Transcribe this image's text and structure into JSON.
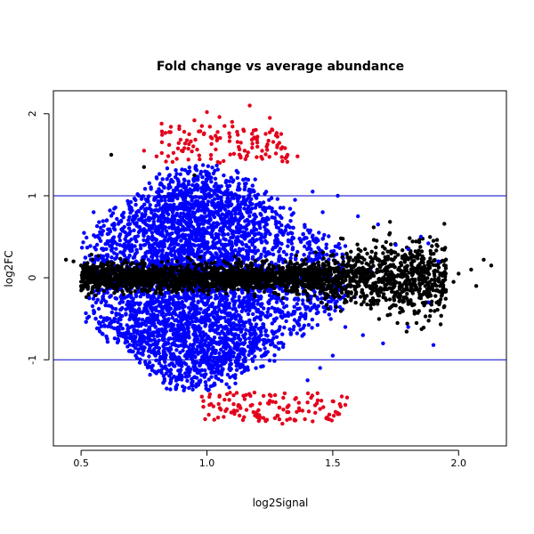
{
  "chart_data": {
    "type": "scatter",
    "title": "Fold change vs average abundance",
    "xlabel": "log2Signal",
    "ylabel": "log2FC",
    "xlim": [
      0.39,
      2.19
    ],
    "ylim": [
      -2.05,
      2.28
    ],
    "x_ticks": [
      0.5,
      1.0,
      1.5,
      2.0
    ],
    "x_tick_labels": [
      "0.5",
      "1.0",
      "1.5",
      "2.0"
    ],
    "y_ticks": [
      -1,
      0,
      1,
      2
    ],
    "y_tick_labels": [
      "-1",
      "0",
      "1",
      "2"
    ],
    "grid": false,
    "legend": "none",
    "reference_lines": [
      {
        "axis": "y",
        "value": 1,
        "color": "#0000CD"
      },
      {
        "axis": "y",
        "value": -1,
        "color": "#0000CD"
      }
    ],
    "series": [
      {
        "color": "#E3001B",
        "description_points": "abs(log2FC) > 1.4",
        "points": [
          [
            0.82,
            1.88
          ],
          [
            0.91,
            1.78
          ],
          [
            0.95,
            1.92
          ],
          [
            1.0,
            2.02
          ],
          [
            1.05,
            1.96
          ],
          [
            1.1,
            1.9
          ],
          [
            1.17,
            2.1
          ],
          [
            1.25,
            1.95
          ],
          [
            1.28,
            1.72
          ],
          [
            0.85,
            1.62
          ],
          [
            0.9,
            1.55
          ],
          [
            1.02,
            1.7
          ],
          [
            1.12,
            1.78
          ],
          [
            1.2,
            1.65
          ],
          [
            1.32,
            1.5
          ],
          [
            1.36,
            1.48
          ],
          [
            0.8,
            1.48
          ],
          [
            0.98,
            1.85
          ],
          [
            1.07,
            1.85
          ],
          [
            1.15,
            1.55
          ],
          [
            0.75,
            1.55
          ],
          [
            0.88,
            1.45
          ],
          [
            1.22,
            1.45
          ],
          [
            1.3,
            1.42
          ],
          [
            1.01,
            -1.55
          ],
          [
            1.05,
            -1.45
          ],
          [
            1.12,
            -1.62
          ],
          [
            1.2,
            -1.7
          ],
          [
            1.28,
            -1.68
          ],
          [
            1.33,
            -1.72
          ],
          [
            1.38,
            -1.62
          ],
          [
            1.42,
            -1.75
          ],
          [
            1.45,
            -1.6
          ],
          [
            1.52,
            -1.65
          ],
          [
            1.55,
            -1.55
          ],
          [
            1.25,
            -1.5
          ],
          [
            1.15,
            -1.48
          ],
          [
            1.35,
            -1.48
          ],
          [
            1.4,
            -1.52
          ],
          [
            1.08,
            -1.42
          ],
          [
            0.98,
            -1.45
          ],
          [
            1.3,
            -1.78
          ],
          [
            1.48,
            -1.72
          ],
          [
            1.18,
            -1.55
          ]
        ]
      },
      {
        "color": "#0000FF",
        "description_points": "outer region",
        "points": [
          [
            1.52,
            1.0
          ],
          [
            1.6,
            0.75
          ],
          [
            1.68,
            0.65
          ],
          [
            1.75,
            0.4
          ],
          [
            1.8,
            0.35
          ],
          [
            1.85,
            0.5
          ],
          [
            1.88,
            0.42
          ],
          [
            1.92,
            0.2
          ],
          [
            1.55,
            -0.6
          ],
          [
            1.62,
            -0.7
          ],
          [
            1.7,
            -0.8
          ],
          [
            1.8,
            -0.6
          ],
          [
            1.88,
            -0.3
          ],
          [
            1.9,
            -0.82
          ],
          [
            1.5,
            -0.95
          ],
          [
            1.45,
            -1.1
          ],
          [
            1.4,
            -1.25
          ],
          [
            1.35,
            0.95
          ],
          [
            1.42,
            1.05
          ],
          [
            1.46,
            0.8
          ],
          [
            0.55,
            0.8
          ],
          [
            0.58,
            0.55
          ],
          [
            0.6,
            0.35
          ],
          [
            0.55,
            -0.4
          ],
          [
            0.58,
            -0.3
          ],
          [
            0.62,
            -0.6
          ],
          [
            0.7,
            -0.9
          ],
          [
            0.78,
            -1.1
          ]
        ]
      },
      {
        "color": "#000000",
        "description_points": "central band and outliers",
        "points": [
          [
            0.44,
            0.22
          ],
          [
            0.47,
            0.2
          ],
          [
            0.5,
            0.15
          ],
          [
            0.52,
            0.05
          ],
          [
            0.5,
            -0.1
          ],
          [
            0.53,
            -0.2
          ],
          [
            0.62,
            1.5
          ],
          [
            0.75,
            1.35
          ],
          [
            0.95,
            1.25
          ],
          [
            2.1,
            0.22
          ],
          [
            2.13,
            0.15
          ],
          [
            2.05,
            0.1
          ],
          [
            2.0,
            0.05
          ],
          [
            1.98,
            -0.05
          ],
          [
            1.95,
            -0.15
          ],
          [
            1.9,
            0.45
          ],
          [
            1.85,
            -0.25
          ],
          [
            1.8,
            -0.32
          ],
          [
            1.75,
            -0.2
          ],
          [
            1.7,
            0.3
          ],
          [
            1.65,
            0.25
          ],
          [
            1.6,
            -0.1
          ],
          [
            1.58,
            0.05
          ],
          [
            1.55,
            0.15
          ],
          [
            1.52,
            -0.05
          ],
          [
            1.48,
            0.1
          ],
          [
            2.07,
            -0.1
          ],
          [
            1.87,
            -0.3
          ]
        ]
      }
    ]
  }
}
